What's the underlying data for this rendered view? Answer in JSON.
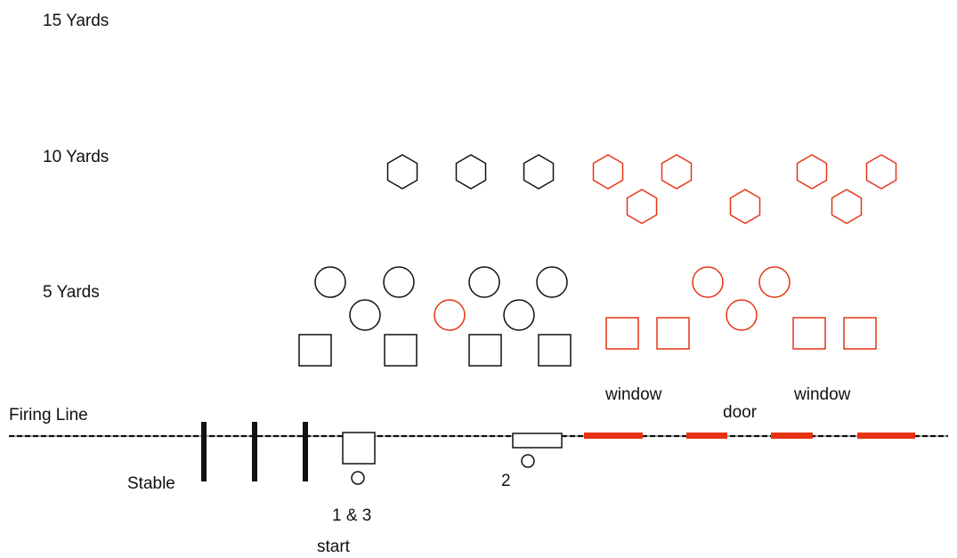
{
  "labels": {
    "yards_15": "15 Yards",
    "yards_10": "10 Yards",
    "yards_5": "5 Yards",
    "firing_line": "Firing Line",
    "stable": "Stable",
    "position_1_3": "1 & 3",
    "position_2": "2",
    "start": "start",
    "window_left": "window",
    "door": "door",
    "window_right": "window"
  },
  "colors": {
    "black": "#111111",
    "red": "#e63312",
    "line": "#111111"
  }
}
